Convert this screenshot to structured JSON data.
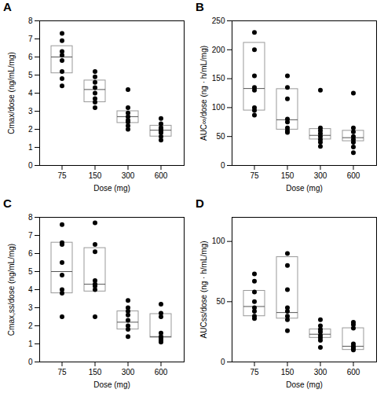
{
  "chart_data": [
    {
      "type": "box",
      "title": "A",
      "x_label": "Dose (mg)",
      "y_label": "Cmax/dose (ng/mL/mg)",
      "categories": [
        75,
        150,
        300,
        600
      ],
      "points": [
        [
          7.3,
          6.9,
          6.3,
          6.1,
          5.8,
          5.2,
          4.8,
          4.4
        ],
        [
          5.2,
          4.9,
          4.6,
          4.3,
          4.0,
          3.7,
          3.5,
          3.2
        ],
        [
          4.2,
          3.2,
          2.9,
          2.7,
          2.5,
          2.4,
          2.2,
          2.0
        ],
        [
          2.6,
          2.3,
          2.1,
          2.0,
          1.9,
          1.8,
          1.6,
          1.4
        ]
      ],
      "box_q1": [
        5.1,
        3.5,
        2.35,
        1.6
      ],
      "box_median": [
        6.0,
        4.2,
        2.7,
        1.95
      ],
      "box_q3": [
        6.6,
        4.7,
        3.0,
        2.2
      ],
      "ylim": [
        0,
        8
      ],
      "yticks": [
        0,
        1,
        2,
        3,
        4,
        5,
        6,
        7,
        8
      ]
    },
    {
      "type": "box",
      "title": "B",
      "x_label": "Dose (mg)",
      "y_label": "AUC∞/dose (ng · h/mL/mg)",
      "categories": [
        75,
        150,
        300,
        600
      ],
      "points": [
        [
          230,
          200,
          155,
          135,
          130,
          100,
          95,
          87
        ],
        [
          155,
          135,
          115,
          80,
          75,
          65,
          60,
          57
        ],
        [
          130,
          65,
          60,
          55,
          50,
          45,
          40,
          33
        ],
        [
          125,
          65,
          58,
          50,
          45,
          40,
          32,
          22
        ]
      ],
      "box_q1": [
        95,
        62,
        45,
        42
      ],
      "box_median": [
        133,
        79,
        52,
        48
      ],
      "box_q3": [
        212,
        132,
        63,
        60
      ],
      "ylim": [
        0,
        250
      ],
      "yticks": [
        0,
        50,
        100,
        150,
        200,
        250
      ]
    },
    {
      "type": "box",
      "title": "C",
      "x_label": "Dose (mg)",
      "y_label": "Cmax,ss/dose (ng/mL/mg)",
      "categories": [
        75,
        150,
        300,
        600
      ],
      "points": [
        [
          7.6,
          6.6,
          6.5,
          5.5,
          4.8,
          4.0,
          3.8,
          2.5
        ],
        [
          7.7,
          6.5,
          6.1,
          4.5,
          4.3,
          4.2,
          4.0,
          2.5
        ],
        [
          3.4,
          3.0,
          2.8,
          2.6,
          2.3,
          2.0,
          1.8,
          1.4
        ],
        [
          3.2,
          2.7,
          2.5,
          1.6,
          1.4,
          1.3,
          1.2,
          1.1
        ]
      ],
      "box_q1": [
        3.8,
        3.9,
        1.8,
        1.35
      ],
      "box_median": [
        5.0,
        4.3,
        2.2,
        1.4
      ],
      "box_q3": [
        6.6,
        6.3,
        2.8,
        2.65
      ],
      "ylim": [
        0,
        8
      ],
      "yticks": [
        0,
        1,
        2,
        3,
        4,
        5,
        6,
        7,
        8
      ]
    },
    {
      "type": "box",
      "title": "D",
      "x_label": "Dose (mg)",
      "y_label": "AUCss/dose (ng · h/mL/mg)",
      "categories": [
        75,
        150,
        300,
        600
      ],
      "points": [
        [
          73,
          67,
          58,
          50,
          45,
          42,
          38,
          36
        ],
        [
          90,
          80,
          60,
          45,
          42,
          38,
          35,
          26
        ],
        [
          35,
          30,
          27,
          25,
          22,
          20,
          18,
          12
        ],
        [
          33,
          31,
          28,
          15,
          13,
          12,
          11,
          10
        ]
      ],
      "box_q1": [
        38,
        36,
        20,
        10
      ],
      "box_median": [
        46,
        41,
        23,
        13
      ],
      "box_q3": [
        59,
        87,
        27,
        28
      ],
      "ylim": [
        0,
        120
      ],
      "yticks": [
        0,
        50,
        100
      ]
    }
  ]
}
